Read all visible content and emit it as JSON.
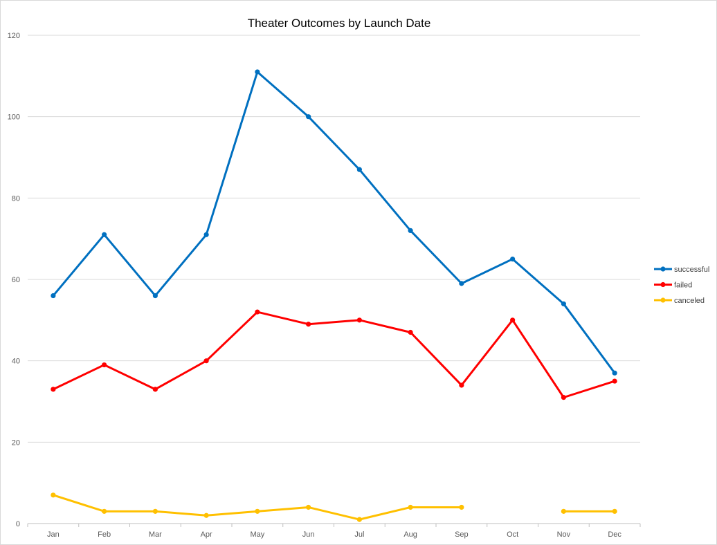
{
  "chart_data": {
    "type": "line",
    "title": "Theater Outcomes by Launch Date",
    "xlabel": "",
    "ylabel": "",
    "categories": [
      "Jan",
      "Feb",
      "Mar",
      "Apr",
      "May",
      "Jun",
      "Jul",
      "Aug",
      "Sep",
      "Oct",
      "Nov",
      "Dec"
    ],
    "y_ticks": [
      "0",
      "20",
      "40",
      "60",
      "80",
      "100",
      "120"
    ],
    "ylim": [
      0,
      120
    ],
    "grid": true,
    "legend_position": "right",
    "series": [
      {
        "name": "successful",
        "color": "#0070c0",
        "values": [
          56,
          71,
          56,
          71,
          111,
          100,
          87,
          72,
          59,
          65,
          54,
          37
        ]
      },
      {
        "name": "failed",
        "color": "#ff0000",
        "values": [
          33,
          39,
          33,
          40,
          52,
          49,
          50,
          47,
          34,
          50,
          31,
          35
        ]
      },
      {
        "name": "canceled",
        "color": "#ffc000",
        "values": [
          7,
          3,
          3,
          2,
          3,
          4,
          1,
          4,
          4,
          null,
          3,
          3
        ]
      }
    ]
  }
}
